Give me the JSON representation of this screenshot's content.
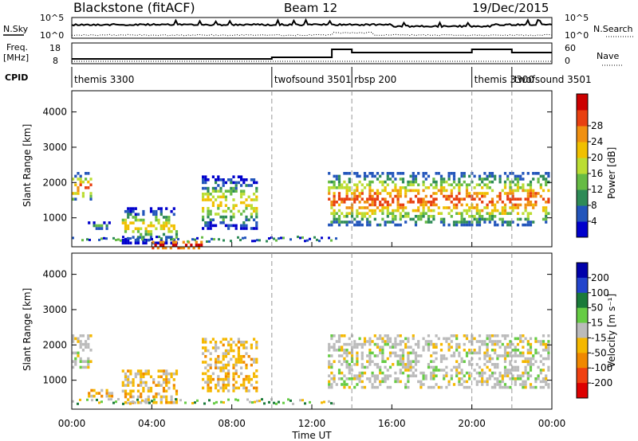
{
  "header": {
    "station": "Blackstone (fitACF)",
    "beam": "Beam 12",
    "date": "19/Dec/2015"
  },
  "sky_panel": {
    "left_label": "N.Sky",
    "left_ticks": [
      "10^5",
      "10^0"
    ],
    "right_ticks": [
      "10^5",
      "10^0"
    ],
    "right_label": "N.Search"
  },
  "freq_panel": {
    "left_label_1": "Freq.",
    "left_label_2": "[MHz]",
    "left_ticks": [
      "18",
      "8"
    ],
    "right_ticks": [
      "60",
      "0"
    ],
    "right_label": "Nave"
  },
  "cpid": {
    "label": "CPID",
    "entries": [
      {
        "name": "themis 3300",
        "start_hour": 0.0
      },
      {
        "name": "twofsound 3501",
        "start_hour": 10.0
      },
      {
        "name": "rbsp 200",
        "start_hour": 14.0
      },
      {
        "name": "themis 3300",
        "start_hour": 20.0
      },
      {
        "name": "twofsound 3501",
        "start_hour": 22.0
      }
    ]
  },
  "chart_data": [
    {
      "type": "heatmap",
      "name": "power",
      "ylabel": "Slant Range [km]",
      "xlim_hours": [
        0,
        24
      ],
      "ylim": [
        180,
        4600
      ],
      "y_ticks": [
        "1000",
        "2000",
        "3000",
        "4000"
      ],
      "colorbar": {
        "label": "Power [dB]",
        "ticks": [
          "4",
          "8",
          "12",
          "16",
          "20",
          "24",
          "28"
        ],
        "colors": [
          "#0000cc",
          "#2255bb",
          "#2e8b57",
          "#66bb44",
          "#bbdd33",
          "#f0c000",
          "#f09010",
          "#e84010",
          "#cc0000"
        ]
      },
      "echo_regions": [
        {
          "x": [
            0.0,
            1.0
          ],
          "range": [
            1500,
            2300
          ],
          "level": "high"
        },
        {
          "x": [
            0.8,
            2.0
          ],
          "range": [
            700,
            900
          ],
          "level": "low"
        },
        {
          "x": [
            2.5,
            5.3
          ],
          "range": [
            300,
            1300
          ],
          "level": "medium"
        },
        {
          "x": [
            4.0,
            6.5
          ],
          "range": [
            180,
            350
          ],
          "level": "very high"
        },
        {
          "x": [
            6.5,
            9.3
          ],
          "range": [
            700,
            2200
          ],
          "level": "medium"
        },
        {
          "x": [
            12.8,
            23.8
          ],
          "range": [
            800,
            2300
          ],
          "level": "high"
        }
      ]
    },
    {
      "type": "heatmap",
      "name": "velocity",
      "xlabel": "Time UT",
      "ylabel": "Slant Range [km]",
      "xlim_hours": [
        0,
        24
      ],
      "ylim": [
        180,
        4600
      ],
      "x_ticks": [
        "00:00",
        "04:00",
        "08:00",
        "12:00",
        "16:00",
        "20:00",
        "00:00"
      ],
      "y_ticks": [
        "1000",
        "2000",
        "3000",
        "4000"
      ],
      "colorbar": {
        "label": "Velocity [m s⁻¹]",
        "ticks": [
          "200",
          "100",
          "50",
          "15",
          "-15",
          "-50",
          "-100",
          "-200"
        ],
        "colors": [
          "#0000aa",
          "#2244cc",
          "#1a7a3a",
          "#66cc44",
          "#bbbbbb",
          "#f5b800",
          "#f08800",
          "#f04010",
          "#dd0000"
        ]
      },
      "echo_regions": [
        {
          "x": [
            0.0,
            1.0
          ],
          "range": [
            1400,
            2300
          ],
          "sign": "~0"
        },
        {
          "x": [
            0.8,
            2.0
          ],
          "range": [
            550,
            750
          ],
          "sign": "negative"
        },
        {
          "x": [
            2.5,
            5.3
          ],
          "range": [
            350,
            1300
          ],
          "sign": "negative"
        },
        {
          "x": [
            6.5,
            9.3
          ],
          "range": [
            700,
            2200
          ],
          "sign": "negative"
        },
        {
          "x": [
            12.8,
            23.8
          ],
          "range": [
            800,
            2300
          ],
          "sign": "~0"
        }
      ]
    }
  ]
}
